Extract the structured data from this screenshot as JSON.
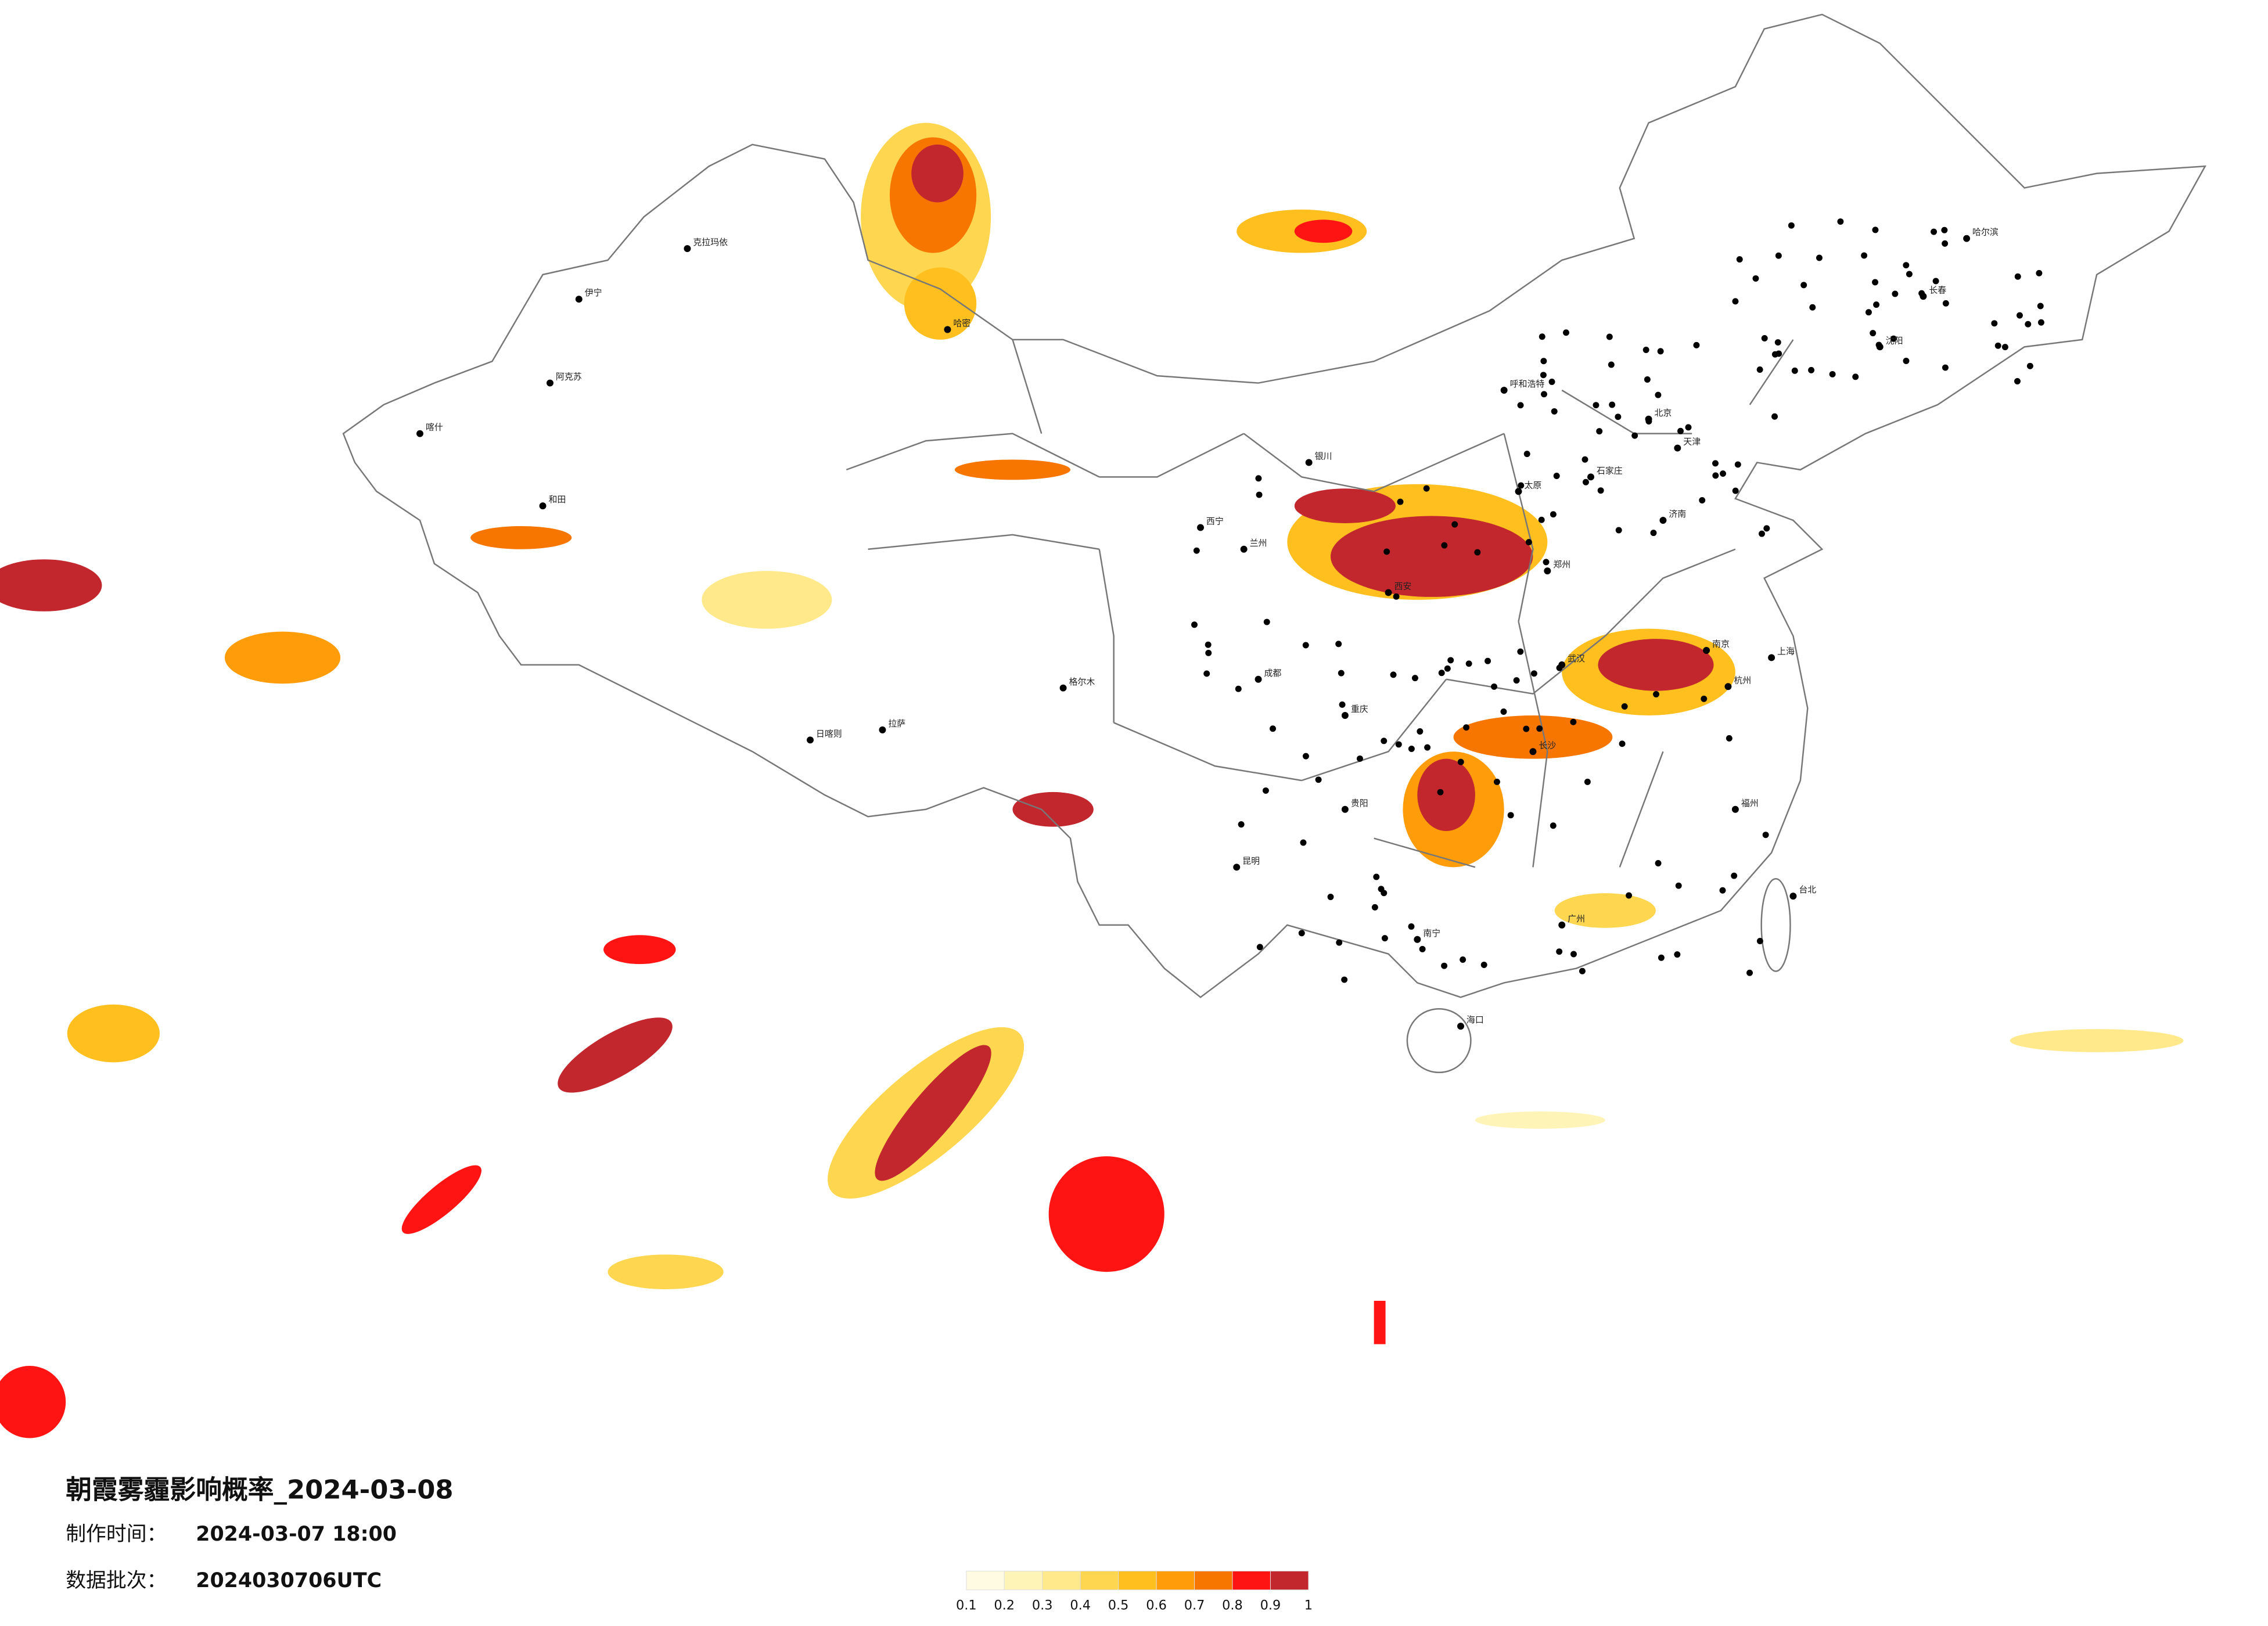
{
  "title": "朝霞雾霾影响概率_2024-03-08",
  "made_label": "制作时间：",
  "made_time": "2024-03-07 18:00",
  "batch_label": "数据批次：",
  "batch": "2024030706UTC",
  "legend": {
    "ticks": [
      0.1,
      0.2,
      0.3,
      0.4,
      0.5,
      0.6,
      0.7,
      0.8,
      0.9,
      1
    ],
    "colors": [
      "#fffbe3",
      "#fff4b8",
      "#ffe98a",
      "#ffd64f",
      "#ffbf1f",
      "#ff9c0a",
      "#f77600",
      "#ff1414",
      "#c1272d"
    ]
  },
  "cities": [
    "克拉玛依",
    "伊宁",
    "阿克苏",
    "喀什",
    "和田",
    "哈密",
    "格尔木",
    "拉萨",
    "日喀则",
    "西宁",
    "兰州",
    "银川",
    "呼和浩特",
    "北京",
    "天津",
    "石家庄",
    "太原",
    "西安",
    "郑州",
    "武汉",
    "长沙",
    "南京",
    "上海",
    "杭州",
    "成都",
    "重庆",
    "贵阳",
    "昆明",
    "南宁",
    "广州",
    "福州",
    "哈尔滨",
    "长春",
    "沈阳",
    "济南",
    "海口",
    "台北"
  ]
}
